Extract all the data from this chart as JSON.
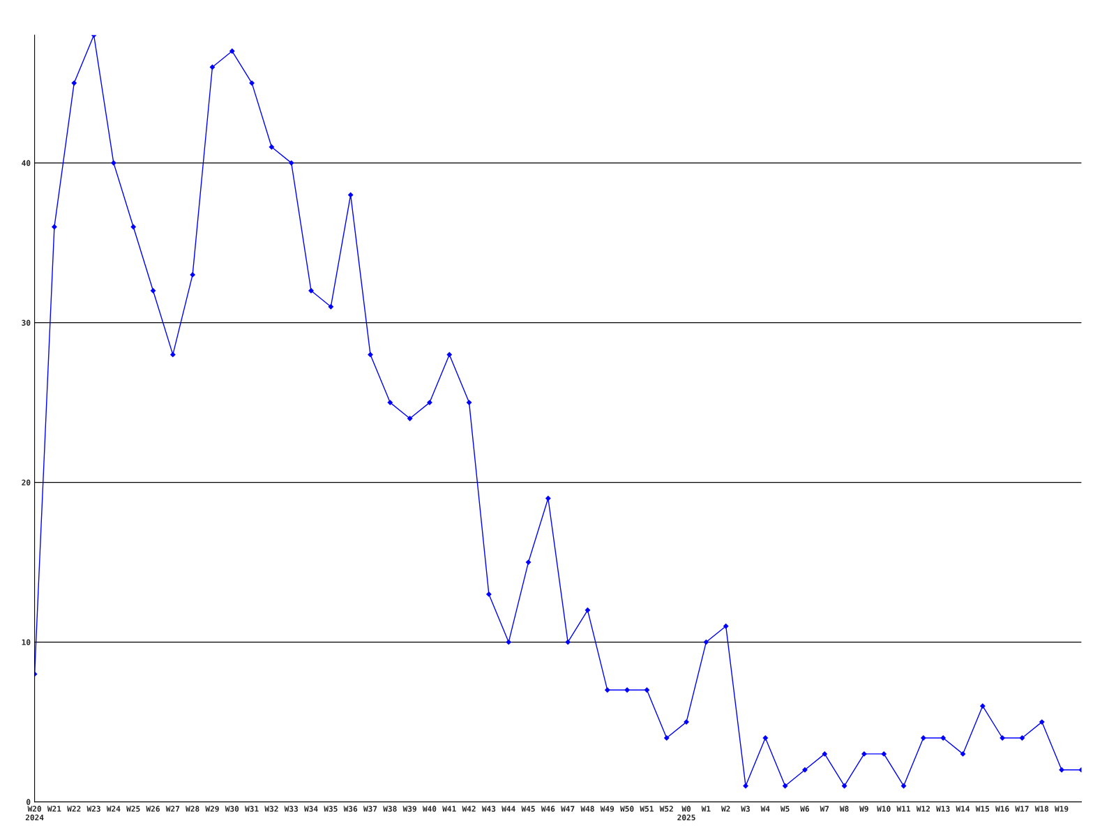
{
  "chart_data": {
    "type": "line",
    "categories": [
      "W20\n2024",
      "W21",
      "W22",
      "W23",
      "W24",
      "W25",
      "W26",
      "W27",
      "W28",
      "W29",
      "W30",
      "W31",
      "W32",
      "W33",
      "W34",
      "W35",
      "W36",
      "W37",
      "W38",
      "W39",
      "W40",
      "W41",
      "W42",
      "W43",
      "W44",
      "W45",
      "W46",
      "W47",
      "W48",
      "W49",
      "W50",
      "W51",
      "W52",
      "W0\n2025",
      "W1",
      "W2",
      "W3",
      "W4",
      "W5",
      "W6",
      "W7",
      "W8",
      "W9",
      "W10",
      "W11",
      "W12",
      "W13",
      "W14",
      "W15",
      "W16",
      "W17",
      "W18",
      "W19",
      null
    ],
    "series": [
      {
        "color": "#0000ff",
        "values": [
          8,
          36,
          45,
          48,
          40,
          36,
          32,
          28,
          33,
          46,
          47,
          45,
          41,
          40,
          32,
          31,
          38,
          28,
          25,
          24,
          25,
          28,
          25,
          13,
          10,
          15,
          19,
          10,
          12,
          7,
          7,
          7,
          4,
          5,
          10,
          11,
          1,
          4,
          1,
          2,
          3,
          1,
          3,
          3,
          1,
          4,
          4,
          3,
          6,
          4,
          4,
          5,
          2,
          2
        ]
      }
    ],
    "ylim": [
      0,
      48
    ],
    "yticks": [
      0,
      10,
      20,
      30,
      40
    ],
    "grid": "y",
    "marker": "diamond",
    "line_style": "solid"
  }
}
